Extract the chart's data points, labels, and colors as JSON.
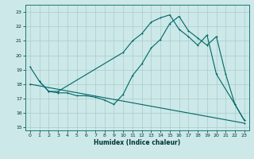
{
  "xlabel": "Humidex (Indice chaleur)",
  "ylabel": "",
  "xlim": [
    -0.5,
    23.5
  ],
  "ylim": [
    14.8,
    23.5
  ],
  "yticks": [
    15,
    16,
    17,
    18,
    19,
    20,
    21,
    22,
    23
  ],
  "xticks": [
    0,
    1,
    2,
    3,
    4,
    5,
    6,
    7,
    8,
    9,
    10,
    11,
    12,
    13,
    14,
    15,
    16,
    17,
    18,
    19,
    20,
    21,
    22,
    23
  ],
  "bg_color": "#cce8e8",
  "grid_color": "#aacccc",
  "line_color": "#006666",
  "line1_x": [
    0,
    1,
    2,
    3,
    4,
    5,
    6,
    7,
    8,
    9,
    10,
    11,
    12,
    13,
    14,
    15,
    16,
    17,
    18,
    19,
    20,
    21,
    22,
    23
  ],
  "line1_y": [
    19.2,
    18.2,
    17.5,
    17.4,
    17.4,
    17.2,
    17.2,
    17.1,
    16.9,
    16.6,
    17.3,
    18.6,
    19.4,
    20.5,
    21.1,
    22.2,
    22.7,
    21.7,
    21.2,
    20.7,
    21.3,
    18.7,
    16.6,
    15.5
  ],
  "line2_x": [
    1,
    2,
    3,
    10,
    11,
    12,
    13,
    14,
    15,
    16,
    17,
    18,
    19,
    20,
    22,
    23
  ],
  "line2_y": [
    18.2,
    17.5,
    17.5,
    20.2,
    21.0,
    21.5,
    22.3,
    22.6,
    22.8,
    21.8,
    21.3,
    20.7,
    21.4,
    18.7,
    16.6,
    15.5
  ],
  "line3_x": [
    0,
    23
  ],
  "line3_y": [
    18.0,
    15.3
  ]
}
